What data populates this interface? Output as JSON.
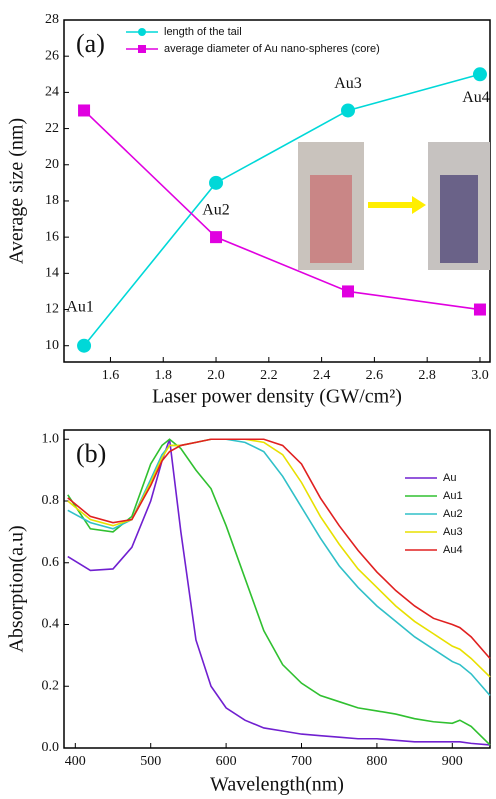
{
  "chart_data": [
    {
      "type": "line",
      "panel_label": "(a)",
      "panel_color": "#00b000",
      "xlabel": "Laser power density (GW/cm²)",
      "ylabel": "Average size (nm)",
      "x": [
        1.5,
        2.0,
        2.5,
        3.0
      ],
      "series": [
        {
          "name": "length of the tail",
          "color": "#00d8d8",
          "marker": "circle",
          "values": [
            10,
            19,
            23,
            25
          ]
        },
        {
          "name": "average diameter of Au nano-spheres (core)",
          "color": "#e000e0",
          "marker": "square",
          "values": [
            23,
            16,
            13,
            12
          ]
        }
      ],
      "annotations": [
        "Au1",
        "Au2",
        "Au3",
        "Au4"
      ],
      "annotation_color": "#d4b000",
      "xlim": [
        1.424,
        3.038
      ],
      "ylim": [
        9.1,
        28
      ],
      "xticks": [
        1.6,
        1.8,
        {
          "value": 2,
          "label": "2.0"
        },
        2.2,
        2.4,
        2.6,
        2.8,
        {
          "value": 3,
          "label": "3.0"
        }
      ],
      "yticks": [
        10,
        12,
        14,
        16,
        18,
        20,
        22,
        24,
        26,
        28
      ],
      "legend": "upper left"
    },
    {
      "type": "line",
      "panel_label": "(b)",
      "panel_color": "#e000e0",
      "xlabel": "Wavelength(nm)",
      "ylabel": "Absorption(a.u)",
      "x": [
        390,
        420,
        450,
        475,
        500,
        515,
        525,
        540,
        560,
        580,
        600,
        625,
        650,
        675,
        700,
        725,
        750,
        775,
        800,
        825,
        850,
        875,
        900,
        910,
        925,
        950
      ],
      "series": [
        {
          "name": "Au",
          "color": "#7020d0",
          "values": [
            0.62,
            0.575,
            0.58,
            0.65,
            0.8,
            0.93,
            1.0,
            0.7,
            0.35,
            0.2,
            0.13,
            0.09,
            0.065,
            0.055,
            0.045,
            0.04,
            0.035,
            0.03,
            0.03,
            0.025,
            0.02,
            0.02,
            0.02,
            0.02,
            0.015,
            0.01
          ]
        },
        {
          "name": "Au1",
          "color": "#30c030",
          "values": [
            0.82,
            0.71,
            0.7,
            0.75,
            0.92,
            0.98,
            1.0,
            0.97,
            0.9,
            0.84,
            0.72,
            0.55,
            0.38,
            0.27,
            0.21,
            0.17,
            0.15,
            0.13,
            0.12,
            0.11,
            0.095,
            0.085,
            0.08,
            0.09,
            0.07,
            0.01
          ]
        },
        {
          "name": "Au2",
          "color": "#30c0c8",
          "values": [
            0.77,
            0.73,
            0.71,
            0.74,
            0.87,
            0.95,
            0.98,
            0.98,
            0.99,
            1.0,
            1.0,
            0.99,
            0.96,
            0.88,
            0.78,
            0.68,
            0.59,
            0.52,
            0.46,
            0.41,
            0.36,
            0.32,
            0.28,
            0.27,
            0.24,
            0.17
          ]
        },
        {
          "name": "Au3",
          "color": "#e8e000",
          "values": [
            0.8,
            0.74,
            0.72,
            0.74,
            0.86,
            0.94,
            0.98,
            0.98,
            0.99,
            1.0,
            1.0,
            1.0,
            0.99,
            0.95,
            0.86,
            0.75,
            0.66,
            0.58,
            0.52,
            0.46,
            0.41,
            0.37,
            0.33,
            0.32,
            0.29,
            0.23
          ]
        },
        {
          "name": "Au4",
          "color": "#e02020",
          "values": [
            0.81,
            0.75,
            0.73,
            0.74,
            0.85,
            0.93,
            0.96,
            0.98,
            0.99,
            1.0,
            1.0,
            1.0,
            1.0,
            0.98,
            0.92,
            0.81,
            0.72,
            0.64,
            0.57,
            0.51,
            0.46,
            0.42,
            0.4,
            0.39,
            0.36,
            0.29
          ]
        }
      ],
      "xlim": [
        385,
        950
      ],
      "ylim": [
        0,
        1.03
      ],
      "xticks": [
        400,
        500,
        600,
        700,
        800,
        900
      ],
      "yticks": [
        {
          "value": 0,
          "label": "0.0"
        },
        0.2,
        0.4,
        0.6,
        0.8,
        {
          "value": 1,
          "label": "1.0"
        }
      ],
      "legend": "right"
    }
  ]
}
